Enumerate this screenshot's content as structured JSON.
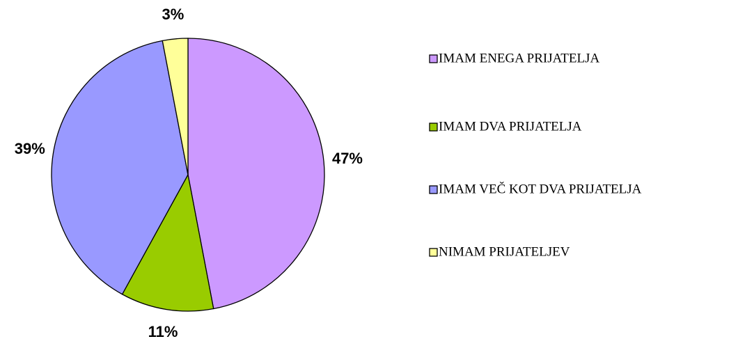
{
  "chart_data": {
    "type": "pie",
    "categories": [
      "IMAM ENEGA PRIJATELJA",
      "IMAM DVA PRIJATELJA",
      "IMAM VEČ KOT DVA PRIJATELJA",
      "NIMAM PRIJATELJEV"
    ],
    "values": [
      47,
      11,
      39,
      3
    ],
    "value_labels": [
      "47%",
      "11%",
      "39%",
      "3%"
    ],
    "colors": [
      "#cc99ff",
      "#99cc00",
      "#9999ff",
      "#ffff99"
    ],
    "legend": "right"
  }
}
